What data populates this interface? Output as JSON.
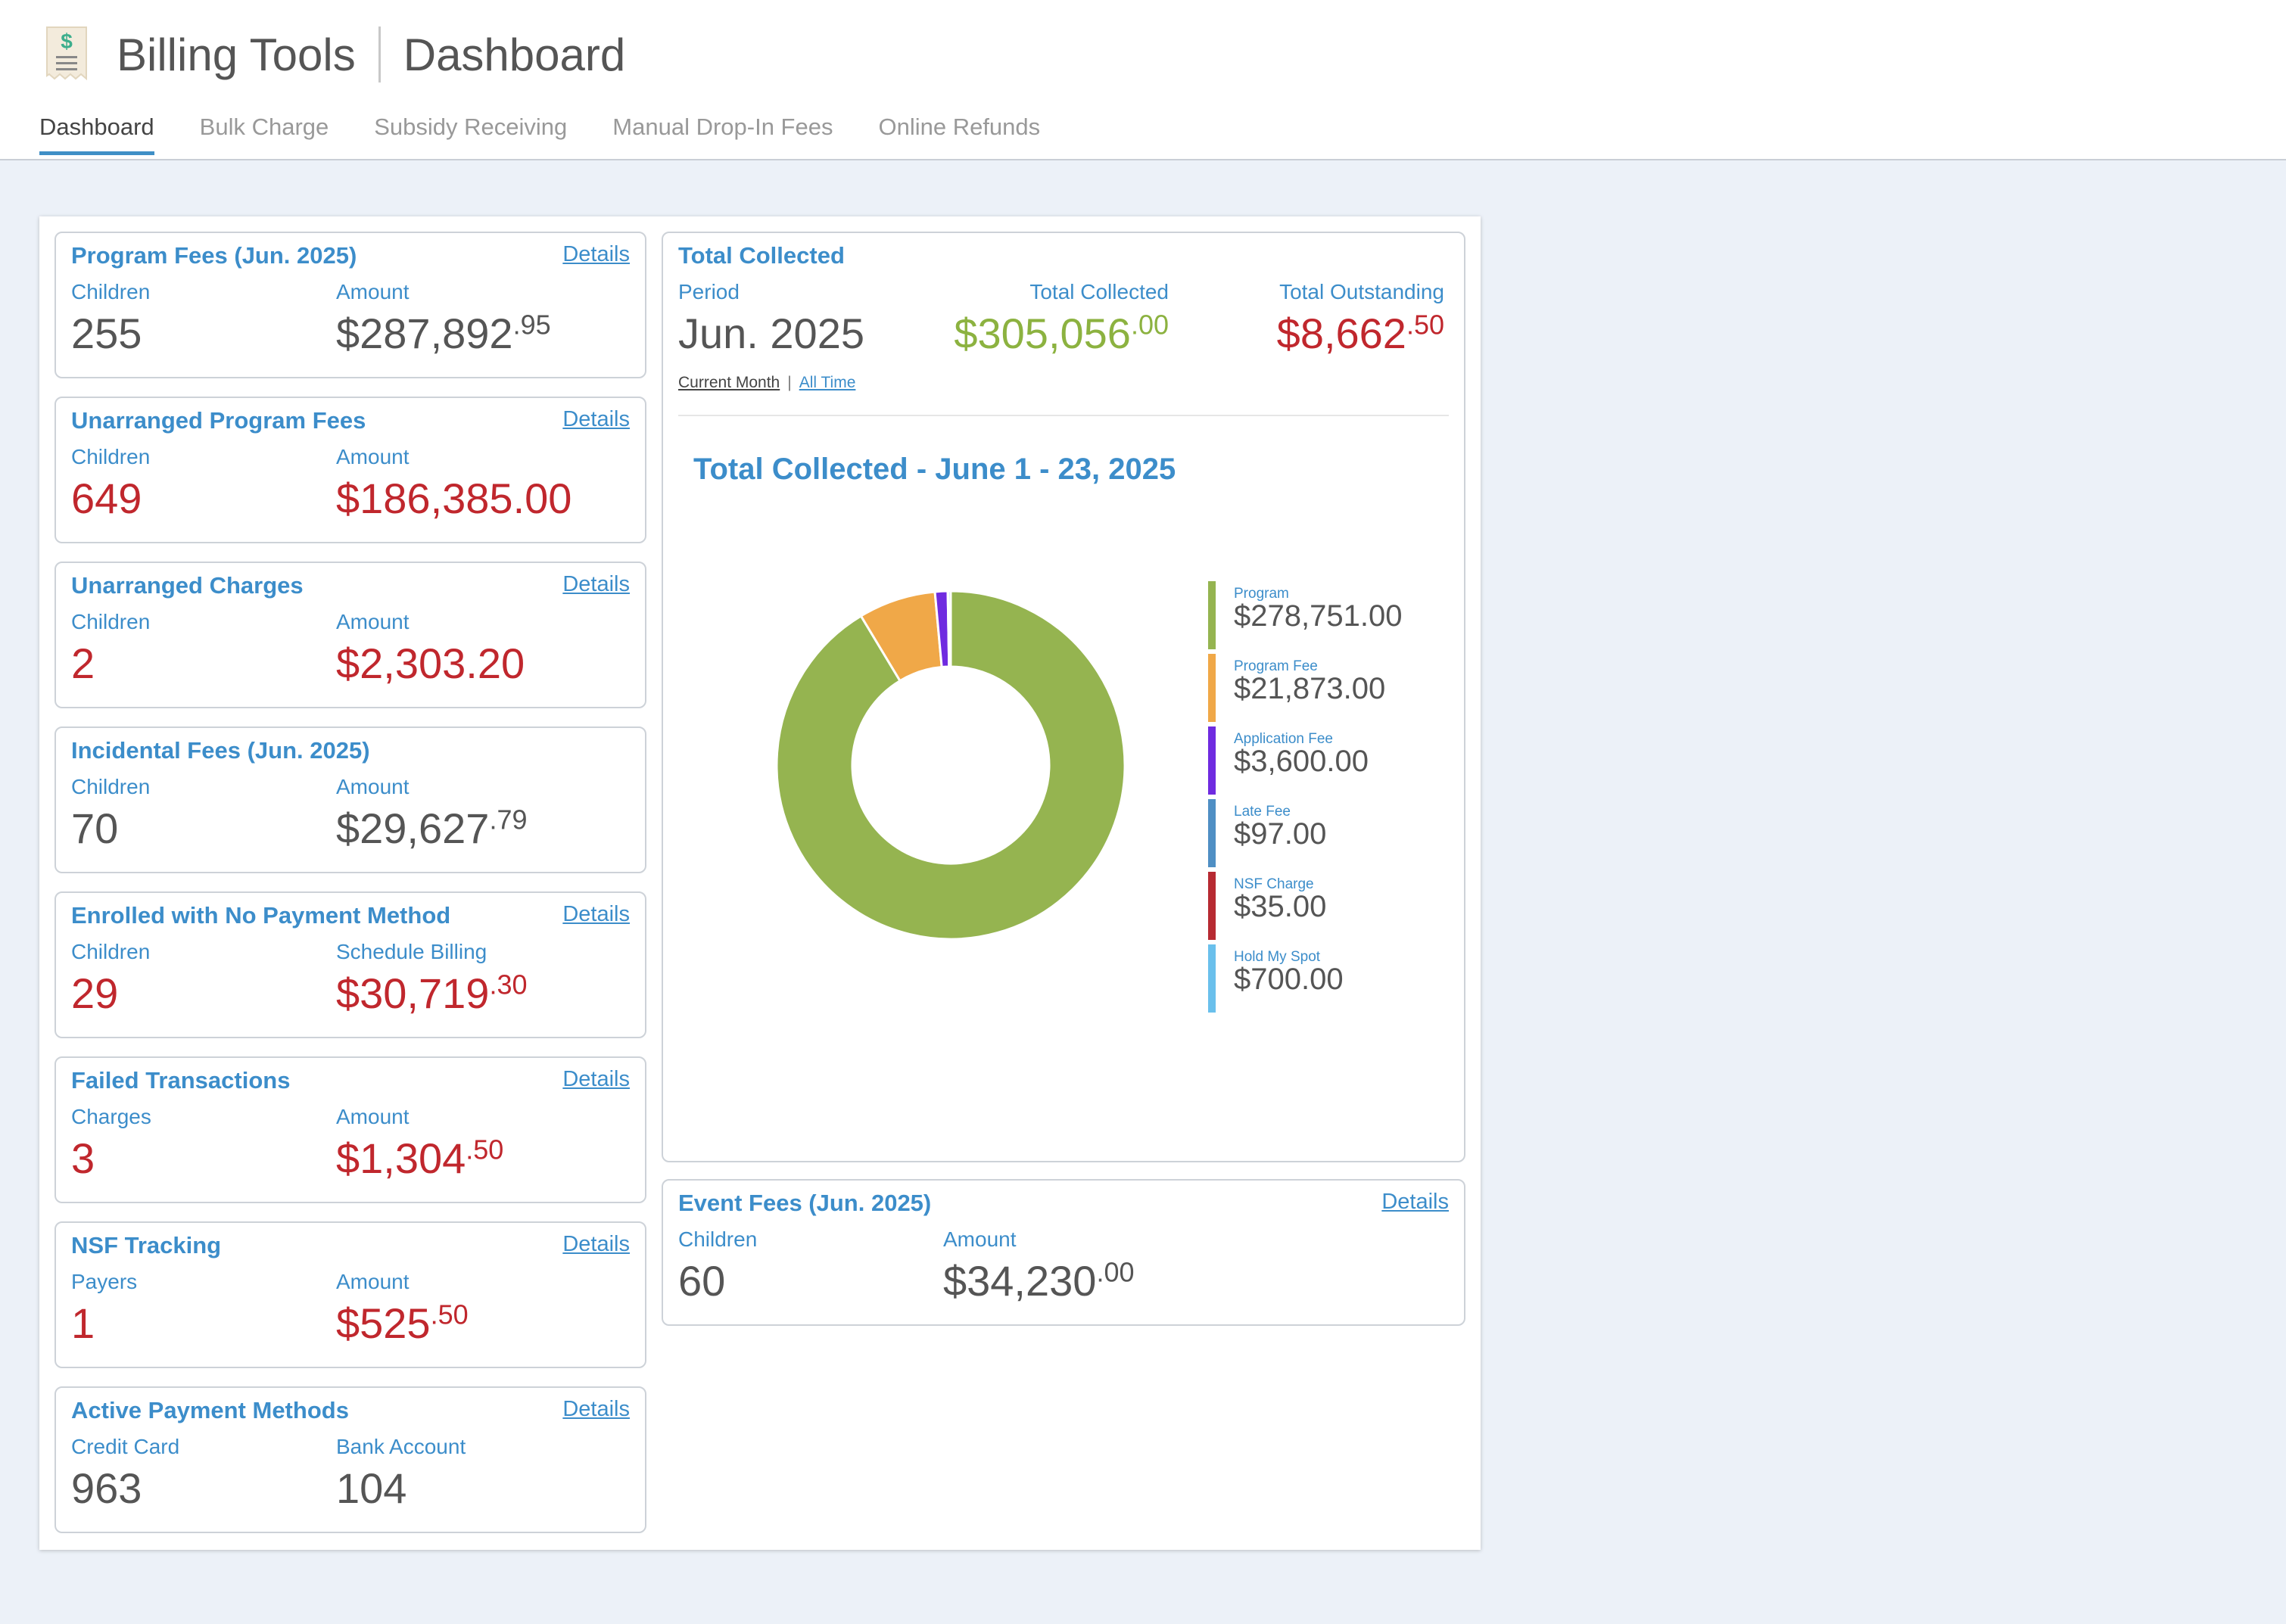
{
  "header": {
    "app_title": "Billing Tools",
    "page_title": "Dashboard",
    "tabs": [
      "Dashboard",
      "Bulk Charge",
      "Subsidy Receiving",
      "Manual Drop-In Fees",
      "Online Refunds"
    ],
    "active_tab": "Dashboard"
  },
  "details_label": "Details",
  "cards": [
    {
      "title": "Program Fees (Jun. 2025)",
      "label1": "Children",
      "value1": "255",
      "label2": "Amount",
      "value2": "$287,892",
      "cents2": ".95",
      "color": "#555555"
    },
    {
      "title": "Unarranged Program Fees",
      "label1": "Children",
      "value1": "649",
      "label2": "Amount",
      "value2": "$186,385.00",
      "cents2": "",
      "color": "#c0272d"
    },
    {
      "title": "Unarranged Charges",
      "label1": "Children",
      "value1": "2",
      "label2": "Amount",
      "value2": "$2,303.20",
      "cents2": "",
      "color": "#c0272d"
    },
    {
      "title": "Incidental Fees (Jun. 2025)",
      "label1": "Children",
      "value1": "70",
      "label2": "Amount",
      "value2": "$29,627",
      "cents2": ".79",
      "color": "#555555"
    },
    {
      "title": "Enrolled with No Payment Method",
      "label1": "Children",
      "value1": "29",
      "label2": "Schedule Billing",
      "value2": "$30,719",
      "cents2": ".30",
      "color": "#c0272d"
    },
    {
      "title": "Failed Transactions",
      "label1": "Charges",
      "value1": "3",
      "label2": "Amount",
      "value2": "$1,304",
      "cents2": ".50",
      "color": "#c0272d"
    },
    {
      "title": "NSF Tracking",
      "label1": "Payers",
      "value1": "1",
      "label2": "Amount",
      "value2": "$525",
      "cents2": ".50",
      "color": "#c0272d"
    },
    {
      "title": "Active Payment Methods",
      "label1": "Credit Card",
      "value1": "963",
      "label2": "Bank Account",
      "value2": "104",
      "cents2": "",
      "color": "#555555"
    }
  ],
  "total_collected": {
    "title": "Total Collected",
    "period_label": "Period",
    "period_value": "Jun. 2025",
    "collected_label": "Total Collected",
    "collected_value": "$305,056",
    "collected_cents": ".00",
    "outstanding_label": "Total Outstanding",
    "outstanding_value": "$8,662",
    "outstanding_cents": ".50",
    "link_current_month": "Current Month",
    "link_separator": "|",
    "link_all_time": "All Time"
  },
  "event_fees": {
    "title": "Event Fees (Jun. 2025)",
    "label1": "Children",
    "value1": "60",
    "label2": "Amount",
    "value2": "$34,230",
    "cents2": ".00"
  },
  "chart_data": {
    "type": "pie",
    "title": "Total Collected - June 1 - 23, 2025",
    "donut": true,
    "legend_position": "right",
    "labels": [
      "Program",
      "Program Fee",
      "Application Fee",
      "Late Fee",
      "NSF Charge",
      "Hold My Spot"
    ],
    "values": [
      278751.0,
      21873.0,
      3600.0,
      97.0,
      35.0,
      700.0
    ],
    "value_labels": [
      "$278,751.00",
      "$21,873.00",
      "$3,600.00",
      "$97.00",
      "$35.00",
      "$700.00"
    ],
    "colors": [
      "#95b450",
      "#f0a848",
      "#6f2be0",
      "#4f8fc4",
      "#b72a32",
      "#6ac0ec"
    ]
  }
}
